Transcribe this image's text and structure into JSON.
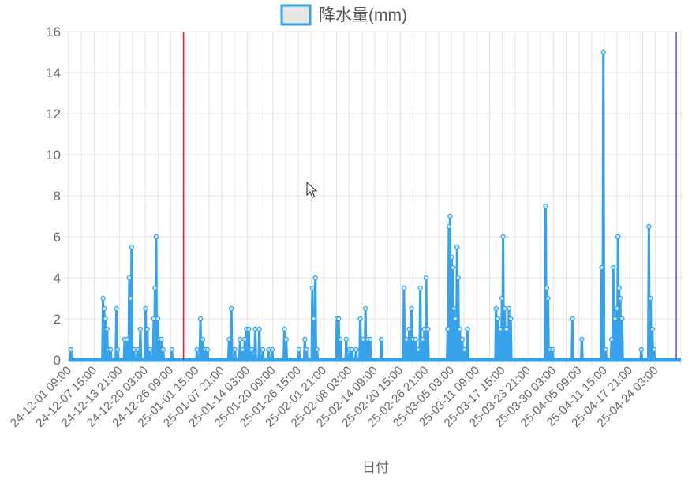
{
  "chart_data": {
    "type": "line",
    "legend": {
      "label": "降水量(mm)",
      "position": "top",
      "box_fill": "#e6e6e6",
      "box_stroke": "#36a2eb"
    },
    "series": [
      {
        "name": "降水量(mm)",
        "color": "#36a2eb",
        "points": [
          [
            0.4,
            0.5
          ],
          [
            5.9,
            3.0
          ],
          [
            6.1,
            2.5
          ],
          [
            6.3,
            2.0
          ],
          [
            6.6,
            1.5
          ],
          [
            6.9,
            0.5
          ],
          [
            7.2,
            0.5
          ],
          [
            8.2,
            2.5
          ],
          [
            8.4,
            0.5
          ],
          [
            9.6,
            1.0
          ],
          [
            10.0,
            1.0
          ],
          [
            10.4,
            4.0
          ],
          [
            10.6,
            3.0
          ],
          [
            10.8,
            5.5
          ],
          [
            11.2,
            0.5
          ],
          [
            11.8,
            0.5
          ],
          [
            12.3,
            1.5
          ],
          [
            13.2,
            2.5
          ],
          [
            13.5,
            1.5
          ],
          [
            14.0,
            0.5
          ],
          [
            14.6,
            2.0
          ],
          [
            14.8,
            3.5
          ],
          [
            15.0,
            6.0
          ],
          [
            15.3,
            2.0
          ],
          [
            15.6,
            1.0
          ],
          [
            15.9,
            1.0
          ],
          [
            16.2,
            0.5
          ],
          [
            17.7,
            0.5
          ],
          [
            22.0,
            0.5
          ],
          [
            22.6,
            2.0
          ],
          [
            23.0,
            1.0
          ],
          [
            23.4,
            0.5
          ],
          [
            23.8,
            0.5
          ],
          [
            27.5,
            1.0
          ],
          [
            27.9,
            2.5
          ],
          [
            28.5,
            0.5
          ],
          [
            29.4,
            1.0
          ],
          [
            29.8,
            0.5
          ],
          [
            30.2,
            1.0
          ],
          [
            30.5,
            1.5
          ],
          [
            30.9,
            1.5
          ],
          [
            31.4,
            0.5
          ],
          [
            32.0,
            1.5
          ],
          [
            32.7,
            1.5
          ],
          [
            33.3,
            0.5
          ],
          [
            34.3,
            0.5
          ],
          [
            34.9,
            0.5
          ],
          [
            37.0,
            1.5
          ],
          [
            37.3,
            1.0
          ],
          [
            39.5,
            0.5
          ],
          [
            40.5,
            1.0
          ],
          [
            40.8,
            0.5
          ],
          [
            41.8,
            3.5
          ],
          [
            42.0,
            2.0
          ],
          [
            42.3,
            4.0
          ],
          [
            42.6,
            0.5
          ],
          [
            46.0,
            2.0
          ],
          [
            46.3,
            2.0
          ],
          [
            46.6,
            1.0
          ],
          [
            47.6,
            1.0
          ],
          [
            48.2,
            0.5
          ],
          [
            48.6,
            0.5
          ],
          [
            49.3,
            0.5
          ],
          [
            50.0,
            2.0
          ],
          [
            50.5,
            1.0
          ],
          [
            50.9,
            2.5
          ],
          [
            51.3,
            1.0
          ],
          [
            51.7,
            1.0
          ],
          [
            53.6,
            1.0
          ],
          [
            57.5,
            3.5
          ],
          [
            57.9,
            1.0
          ],
          [
            58.4,
            1.5
          ],
          [
            58.8,
            2.5
          ],
          [
            59.1,
            1.0
          ],
          [
            59.5,
            1.0
          ],
          [
            59.9,
            0.5
          ],
          [
            60.3,
            3.5
          ],
          [
            60.7,
            1.0
          ],
          [
            61.0,
            1.5
          ],
          [
            61.3,
            4.0
          ],
          [
            61.6,
            1.5
          ],
          [
            65.0,
            1.5
          ],
          [
            65.2,
            6.5
          ],
          [
            65.4,
            7.0
          ],
          [
            65.7,
            5.0
          ],
          [
            65.9,
            4.5
          ],
          [
            66.1,
            2.5
          ],
          [
            66.3,
            2.0
          ],
          [
            66.6,
            5.5
          ],
          [
            66.8,
            4.0
          ],
          [
            67.1,
            1.5
          ],
          [
            67.5,
            1.0
          ],
          [
            67.9,
            0.5
          ],
          [
            68.4,
            1.5
          ],
          [
            73.3,
            2.5
          ],
          [
            73.6,
            2.0
          ],
          [
            74.0,
            1.5
          ],
          [
            74.3,
            3.0
          ],
          [
            74.5,
            6.0
          ],
          [
            74.8,
            2.5
          ],
          [
            75.1,
            1.5
          ],
          [
            75.5,
            2.5
          ],
          [
            75.8,
            2.0
          ],
          [
            81.8,
            7.5
          ],
          [
            82.0,
            3.5
          ],
          [
            82.2,
            3.0
          ],
          [
            82.6,
            0.5
          ],
          [
            83.0,
            0.5
          ],
          [
            86.4,
            2.0
          ],
          [
            88.0,
            1.0
          ],
          [
            91.4,
            4.5
          ],
          [
            91.7,
            15.0
          ],
          [
            92.1,
            0.5
          ],
          [
            93.1,
            1.0
          ],
          [
            93.4,
            4.5
          ],
          [
            93.7,
            2.0
          ],
          [
            94.0,
            2.5
          ],
          [
            94.2,
            6.0
          ],
          [
            94.4,
            3.5
          ],
          [
            94.6,
            3.0
          ],
          [
            94.9,
            2.0
          ],
          [
            98.2,
            0.5
          ],
          [
            99.5,
            6.5
          ],
          [
            99.8,
            3.0
          ],
          [
            100.1,
            1.5
          ],
          [
            100.4,
            0.5
          ]
        ]
      }
    ],
    "x_tick_labels": [
      "24-12-01 09:00",
      "24-12-07 15:00",
      "24-12-13 21:00",
      "24-12-20 03:00",
      "24-12-26 09:00",
      "25-01-01 15:00",
      "25-01-07 21:00",
      "25-01-14 03:00",
      "25-01-20 09:00",
      "25-01-26 15:00",
      "25-02-01 21:00",
      "25-02-08 03:00",
      "25-02-14 09:00",
      "25-02-20 15:00",
      "25-02-26 21:00",
      "25-03-05 03:00",
      "25-03-11 09:00",
      "25-03-17 15:00",
      "25-03-23 21:00",
      "25-03-30 03:00",
      "25-04-05 09:00",
      "25-04-11 15:00",
      "25-04-17 21:00",
      "25-04-24 03:00"
    ],
    "xlim": [
      0,
      105
    ],
    "x_tick_values": [
      0,
      4.375,
      8.75,
      13.125,
      17.5,
      21.875,
      26.25,
      30.625,
      35,
      39.375,
      43.75,
      48.125,
      52.5,
      56.875,
      61.25,
      65.625,
      70,
      74.375,
      78.75,
      83.125,
      87.5,
      91.875,
      96.25,
      100.625
    ],
    "y_tick_labels": [
      "0",
      "2",
      "4",
      "6",
      "8",
      "10",
      "12",
      "14",
      "16"
    ],
    "ylim": [
      0,
      16
    ],
    "y_tick_values": [
      0,
      2,
      4,
      6,
      8,
      10,
      12,
      14,
      16
    ],
    "xlabel": "日付",
    "ylabel": "",
    "grid": true,
    "reference_lines": [
      {
        "x": 19.7,
        "color": "#e02424"
      },
      {
        "x": 104.2,
        "color": "#6b5bd6"
      }
    ]
  }
}
